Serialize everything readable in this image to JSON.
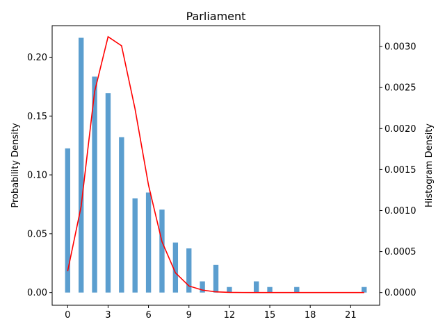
{
  "chart_data": {
    "type": "bar",
    "title": "Parliament",
    "xlabel": "",
    "ylabel": "Probability Density",
    "y2label": "Histogram Density",
    "xlim": [
      -1.15,
      23.15
    ],
    "ylim": [
      -0.0108,
      0.2268
    ],
    "y2lim": [
      -0.000155,
      0.003255
    ],
    "x_ticks": [
      0,
      3,
      6,
      9,
      12,
      15,
      18,
      21
    ],
    "y_ticks": [
      0.0,
      0.05,
      0.1,
      0.15,
      0.2
    ],
    "y_tick_labels": [
      "0.00",
      "0.05",
      "0.10",
      "0.15",
      "0.20"
    ],
    "y2_ticks": [
      0.0,
      0.0005,
      0.001,
      0.0015,
      0.002,
      0.0025,
      0.003
    ],
    "y2_tick_labels": [
      "0.0000",
      "0.0005",
      "0.0010",
      "0.0015",
      "0.0020",
      "0.0025",
      "0.0030"
    ],
    "bar_width": 0.38,
    "grid": false,
    "series": [
      {
        "type": "bar",
        "axis": "left",
        "color": "#5b9ecf",
        "x": [
          0,
          1,
          2,
          3,
          4,
          5,
          6,
          7,
          8,
          9,
          10,
          11,
          12,
          14,
          15,
          17,
          22
        ],
        "values": [
          0.1225,
          0.2165,
          0.1835,
          0.1695,
          0.132,
          0.08,
          0.085,
          0.0705,
          0.0425,
          0.0375,
          0.0095,
          0.0235,
          0.0047,
          0.0095,
          0.0047,
          0.0047,
          0.0047
        ]
      },
      {
        "type": "line",
        "axis": "right",
        "color": "#ff0000",
        "x": [
          0,
          1,
          2,
          3,
          4,
          5,
          6,
          7,
          8,
          9,
          10,
          11,
          12,
          13,
          14,
          15,
          16,
          17,
          18,
          19,
          20,
          21,
          22
        ],
        "values": [
          0.00026,
          0.00105,
          0.00245,
          0.00312,
          0.00301,
          0.00224,
          0.00131,
          0.00062,
          0.00024,
          8e-05,
          3e-05,
          8e-06,
          2e-06,
          5e-07,
          0,
          0,
          0,
          0,
          0,
          0,
          0,
          0,
          0
        ]
      }
    ]
  }
}
